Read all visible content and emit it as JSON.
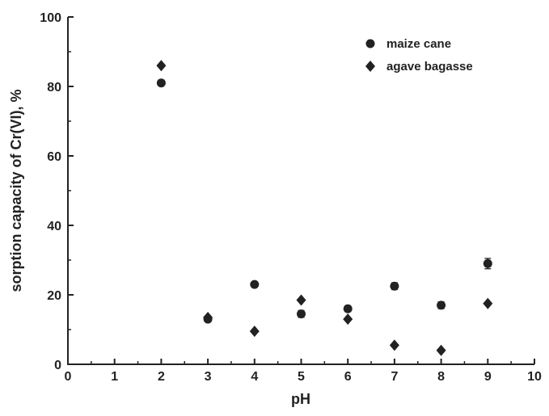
{
  "chart_data": {
    "type": "scatter",
    "x_label": "pH",
    "y_label": "sorption capacity of Cr(VI), %",
    "xlim": [
      0,
      10
    ],
    "xticks": [
      0,
      1,
      2,
      3,
      4,
      5,
      6,
      7,
      8,
      9,
      10
    ],
    "ylim": [
      0,
      100
    ],
    "yticks": [
      0,
      20,
      40,
      60,
      80,
      100
    ],
    "legend_position": "top right",
    "series": [
      {
        "name": "maize cane",
        "color": "#222222",
        "marker": "circle",
        "x": [
          2,
          3,
          4,
          5,
          6,
          7,
          8,
          9
        ],
        "values": [
          81,
          13,
          23,
          14.5,
          16,
          22.5,
          17,
          29
        ],
        "errors": [
          0.5,
          0.5,
          0.5,
          1,
          0.8,
          1,
          1,
          1.5
        ]
      },
      {
        "name": "agave bagasse",
        "color": "#222222",
        "marker": "diamond",
        "x": [
          2,
          3,
          4,
          5,
          6,
          7,
          8,
          9
        ],
        "values": [
          86,
          13.5,
          9.5,
          18.5,
          13,
          5.5,
          4,
          17.5
        ]
      }
    ]
  }
}
